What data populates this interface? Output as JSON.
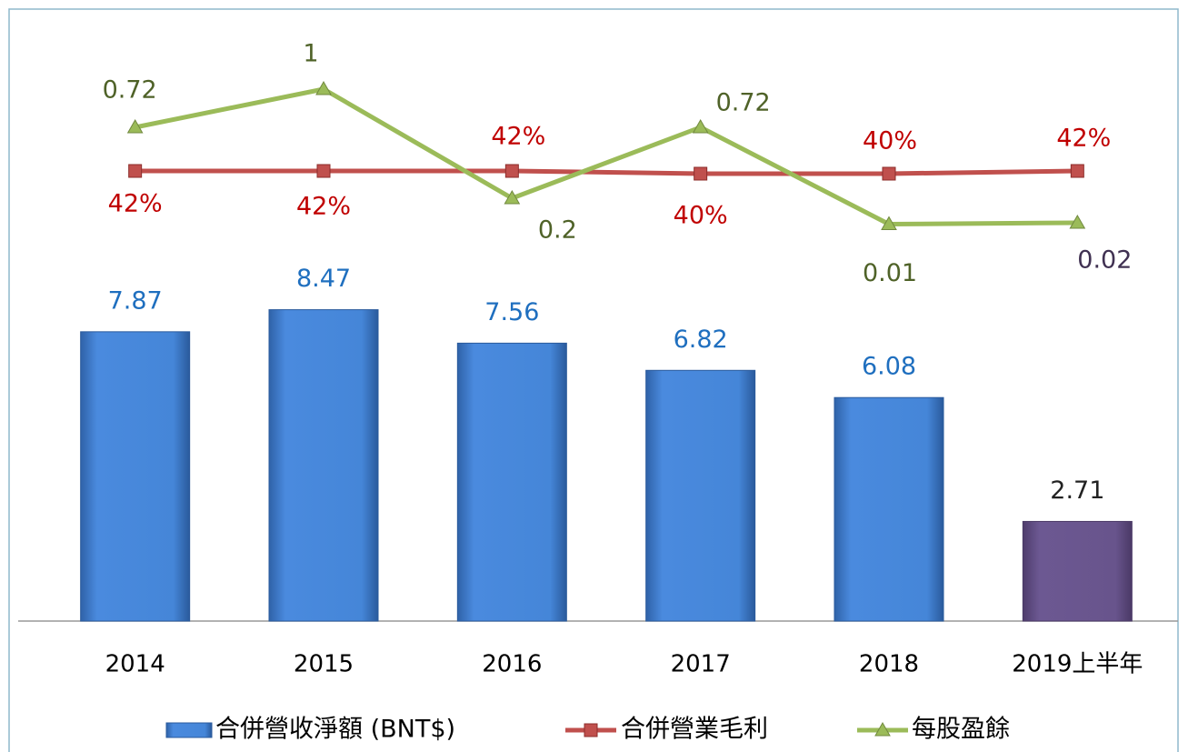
{
  "chart_data": {
    "type": "bar_line",
    "categories": [
      "2014",
      "2015",
      "2016",
      "2017",
      "2018",
      "2019上半年"
    ],
    "ylim": [
      0,
      16.4
    ],
    "y2lim": [
      -288,
      154
    ],
    "y3lim": [
      -2.9,
      1.52
    ],
    "series": [
      {
        "name": "合併營收淨額 (BNT$)",
        "type": "bar",
        "color": "#3f7fd2",
        "colors": [
          "#3f7fd2",
          "#3f7fd2",
          "#3f7fd2",
          "#3f7fd2",
          "#3f7fd2",
          "#67528c"
        ],
        "values": [
          7.87,
          8.47,
          7.56,
          6.82,
          6.08,
          2.71
        ]
      },
      {
        "name": "合併營業毛利",
        "type": "line",
        "axis": "y2",
        "color": "#c0504d",
        "values": [
          42,
          42,
          42,
          40,
          40,
          42
        ],
        "value_labels": [
          "42%",
          "42%",
          "42%",
          "40%",
          "40%",
          "42%"
        ]
      },
      {
        "name": "每股盈餘",
        "type": "line",
        "axis": "y3",
        "color": "#9bbb59",
        "values": [
          0.72,
          1,
          0.2,
          0.72,
          0.01,
          0.02
        ]
      }
    ]
  }
}
